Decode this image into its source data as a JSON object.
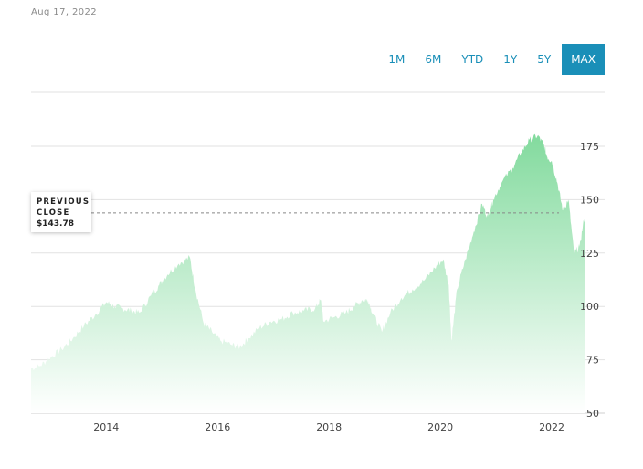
{
  "header": {
    "date": "Aug 17, 2022"
  },
  "ranges": [
    {
      "label": "1M",
      "active": false
    },
    {
      "label": "6M",
      "active": false
    },
    {
      "label": "YTD",
      "active": false
    },
    {
      "label": "1Y",
      "active": false
    },
    {
      "label": "5Y",
      "active": false
    },
    {
      "label": "MAX",
      "active": true
    }
  ],
  "previous_close": {
    "label": "PREVIOUS\nCLOSE",
    "value": "$143.78",
    "number": 143.78
  },
  "colors": {
    "accent": "#1a8fb8",
    "area_top": "#7ed99a",
    "area_bottom": "#ffffff"
  },
  "chart_data": {
    "type": "area",
    "title": "",
    "xlabel": "",
    "ylabel": "",
    "xlim": [
      2012.65,
      2022.95
    ],
    "ylim": [
      50,
      190
    ],
    "y_ticks": [
      50,
      75,
      100,
      125,
      150,
      175
    ],
    "x_ticks": [
      2014,
      2016,
      2018,
      2020,
      2022
    ],
    "x_tick_labels": [
      "2014",
      "2016",
      "2018",
      "2020",
      "2022"
    ],
    "grid": true,
    "series": [
      {
        "x": [
          2012.65,
          2012.8,
          2013.0,
          2013.2,
          2013.4,
          2013.6,
          2013.8,
          2014.0,
          2014.15,
          2014.3,
          2014.45,
          2014.6,
          2014.8,
          2014.95,
          2015.1,
          2015.3,
          2015.5,
          2015.6,
          2015.75,
          2015.9,
          2016.05,
          2016.25,
          2016.4,
          2016.55,
          2016.75,
          2016.95,
          2017.15,
          2017.35,
          2017.55,
          2017.75,
          2017.85,
          2017.9,
          2018.1,
          2018.3,
          2018.45,
          2018.6,
          2018.7,
          2018.8,
          2018.95,
          2019.1,
          2019.3,
          2019.5,
          2019.7,
          2019.9,
          2020.05,
          2020.15,
          2020.2,
          2020.3,
          2020.45,
          2020.6,
          2020.75,
          2020.85,
          2020.95,
          2021.1,
          2021.3,
          2021.45,
          2021.6,
          2021.75,
          2021.85,
          2021.92,
          2022.0,
          2022.1,
          2022.2,
          2022.3,
          2022.4,
          2022.5,
          2022.6
        ],
        "values": [
          71,
          72,
          76,
          80,
          85,
          91,
          96,
          102,
          100,
          99,
          98,
          97,
          105,
          110,
          115,
          120,
          123,
          108,
          92,
          88,
          84,
          82,
          81,
          85,
          90,
          93,
          94,
          97,
          98,
          99,
          103,
          93,
          95,
          97,
          100,
          103,
          103,
          96,
          88,
          97,
          104,
          108,
          112,
          118,
          122,
          110,
          84,
          108,
          122,
          135,
          148,
          142,
          150,
          158,
          165,
          172,
          178,
          180,
          176,
          170,
          168,
          158,
          145,
          150,
          125,
          128,
          143.78
        ]
      }
    ]
  }
}
